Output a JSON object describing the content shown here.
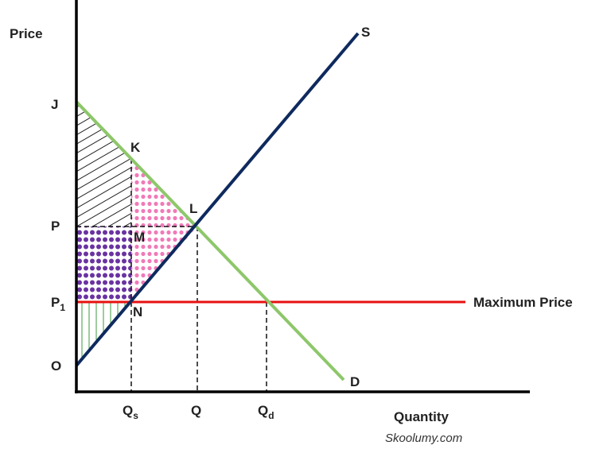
{
  "axes": {
    "y_label": "Price",
    "x_label": "Quantity"
  },
  "curves": {
    "supply": "S",
    "demand": "D",
    "max_price": "Maximum Price"
  },
  "points": {
    "k": "K",
    "l": "L",
    "m": "M",
    "n": "N"
  },
  "price_labels": [
    {
      "text": "J"
    },
    {
      "text": "P"
    },
    {
      "text": "P",
      "sub": "1"
    },
    {
      "text": "O"
    }
  ],
  "quantity_labels": [
    {
      "text": "Q",
      "sub": "s"
    },
    {
      "text": "Q"
    },
    {
      "text": "Q",
      "sub": "d"
    }
  ],
  "credit": "Skoolumy.com"
}
